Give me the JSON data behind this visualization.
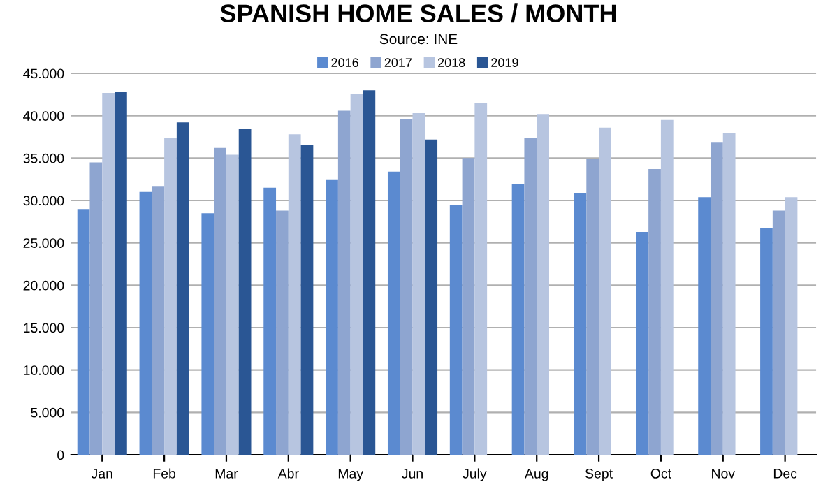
{
  "chart_data": {
    "type": "bar",
    "title": "SPANISH HOME SALES / MONTH",
    "subtitle": "Source: INE",
    "categories": [
      "Jan",
      "Feb",
      "Mar",
      "Abr",
      "May",
      "Jun",
      "July",
      "Aug",
      "Sept",
      "Oct",
      "Nov",
      "Dec"
    ],
    "series": [
      {
        "name": "2016",
        "color": "#5b8ad0",
        "values": [
          29000,
          31000,
          28500,
          31500,
          32500,
          33400,
          29500,
          31900,
          30900,
          26300,
          30400,
          26700
        ]
      },
      {
        "name": "2017",
        "color": "#8ea5d0",
        "values": [
          34500,
          31700,
          36200,
          28800,
          40600,
          39600,
          35000,
          37400,
          34900,
          33700,
          36900,
          28800
        ]
      },
      {
        "name": "2018",
        "color": "#b7c5e0",
        "values": [
          42700,
          37400,
          35400,
          37800,
          42600,
          40300,
          41500,
          40200,
          38600,
          39500,
          38000,
          30400
        ]
      },
      {
        "name": "2019",
        "color": "#2a5694",
        "values": [
          42800,
          39200,
          38400,
          36600,
          43000,
          37200,
          null,
          null,
          null,
          null,
          null,
          null
        ]
      }
    ],
    "ylim": [
      0,
      45000
    ],
    "yticks": [
      0,
      {
        "value": 5000,
        "label": "5.000"
      },
      {
        "value": 10000,
        "label": "10.000"
      },
      {
        "value": 15000,
        "label": "15.000"
      },
      {
        "value": 20000,
        "label": "20.000"
      },
      {
        "value": 25000,
        "label": "25.000"
      },
      {
        "value": 30000,
        "label": "30.000"
      },
      {
        "value": 35000,
        "label": "35.000"
      },
      {
        "value": 40000,
        "label": "40.000"
      },
      {
        "value": 45000,
        "label": "45.000"
      }
    ],
    "grid": "y",
    "legend": "top"
  }
}
